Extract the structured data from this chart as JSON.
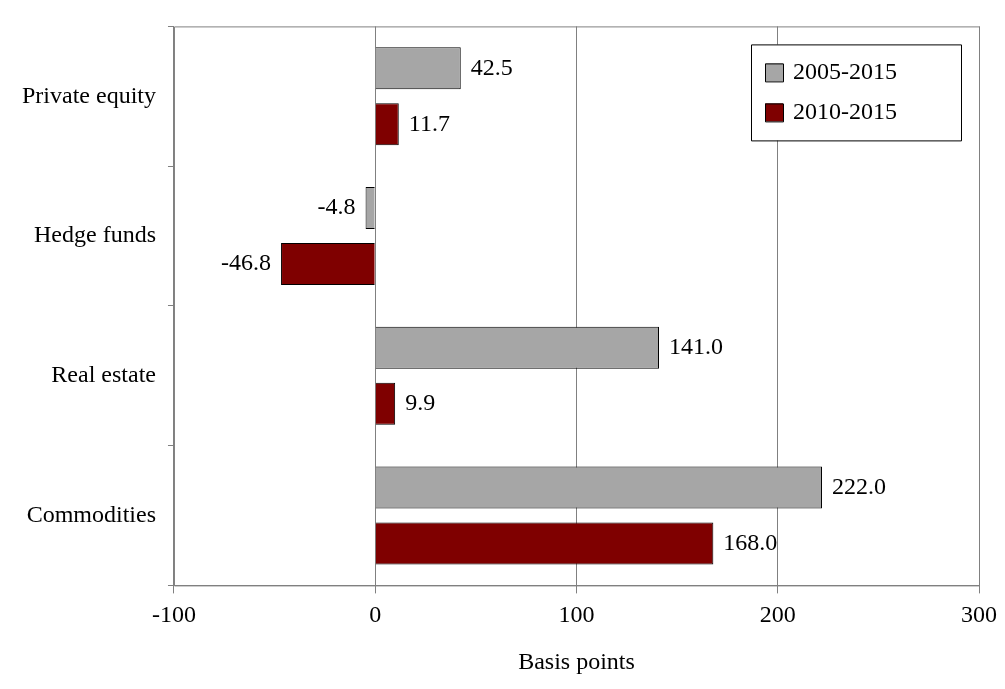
{
  "chart_data": {
    "type": "bar",
    "orientation": "horizontal",
    "xlabel": "Basis points",
    "categories": [
      "Private equity",
      "Hedge funds",
      "Real estate",
      "Commodities"
    ],
    "series": [
      {
        "name": "2005-2015",
        "color": "#a6a6a6",
        "values": [
          42.5,
          -4.8,
          141.0,
          222.0
        ],
        "value_labels": [
          "42.5",
          "-4.8",
          "141.0",
          "222.0"
        ]
      },
      {
        "name": "2010-2015",
        "color": "#7f0000",
        "values": [
          11.7,
          -46.8,
          9.9,
          168.0
        ],
        "value_labels": [
          "11.7",
          "-46.8",
          "9.9",
          "168.0"
        ]
      }
    ],
    "xlim": [
      -100,
      300
    ],
    "xticks": [
      -100,
      0,
      100,
      200,
      300
    ],
    "grid": "x",
    "legend": "top right"
  }
}
